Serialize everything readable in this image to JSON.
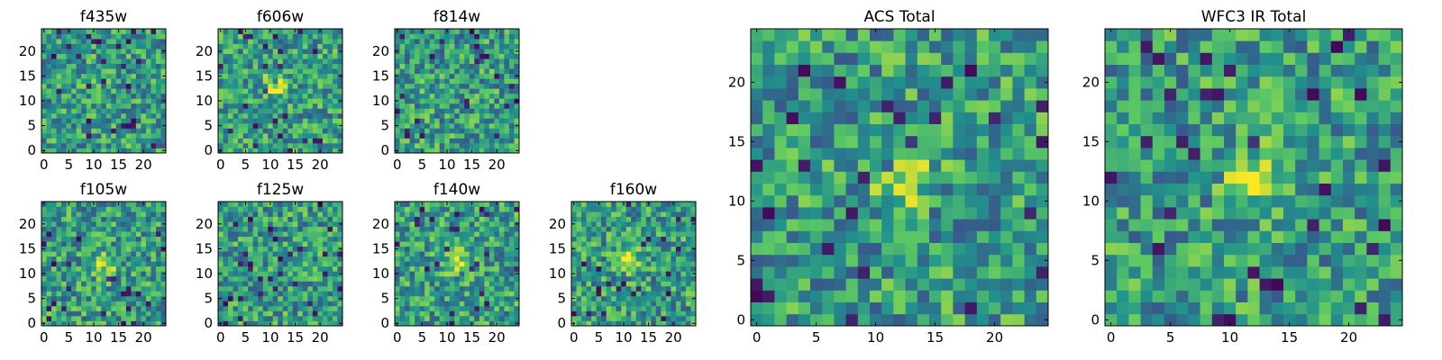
{
  "chart_data": [
    {
      "type": "heatmap",
      "title": "f435w",
      "xticks": [
        "0",
        "5",
        "10",
        "15",
        "20"
      ],
      "yticks": [
        "0",
        "5",
        "10",
        "15",
        "20"
      ],
      "xlim": [
        0,
        24
      ],
      "ylim": [
        0,
        24
      ],
      "grid": false,
      "colormap": "viridis",
      "values": []
    },
    {
      "type": "heatmap",
      "title": "f606w",
      "xticks": [
        "0",
        "5",
        "10",
        "15",
        "20"
      ],
      "yticks": [
        "0",
        "5",
        "10",
        "15",
        "20"
      ],
      "xlim": [
        0,
        24
      ],
      "ylim": [
        0,
        24
      ],
      "grid": false,
      "colormap": "viridis",
      "values": []
    },
    {
      "type": "heatmap",
      "title": "f814w",
      "xticks": [
        "0",
        "5",
        "10",
        "15",
        "20"
      ],
      "yticks": [
        "0",
        "5",
        "10",
        "15",
        "20"
      ],
      "xlim": [
        0,
        24
      ],
      "ylim": [
        0,
        24
      ],
      "grid": false,
      "colormap": "viridis",
      "values": []
    },
    {
      "type": "heatmap",
      "title": "f105w",
      "xticks": [
        "0",
        "5",
        "10",
        "15",
        "20"
      ],
      "yticks": [
        "0",
        "5",
        "10",
        "15",
        "20"
      ],
      "xlim": [
        0,
        24
      ],
      "ylim": [
        0,
        24
      ],
      "grid": false,
      "colormap": "viridis",
      "values": []
    },
    {
      "type": "heatmap",
      "title": "f125w",
      "xticks": [
        "0",
        "5",
        "10",
        "15",
        "20"
      ],
      "yticks": [
        "0",
        "5",
        "10",
        "15",
        "20"
      ],
      "xlim": [
        0,
        24
      ],
      "ylim": [
        0,
        24
      ],
      "grid": false,
      "colormap": "viridis",
      "values": []
    },
    {
      "type": "heatmap",
      "title": "f140w",
      "xticks": [
        "0",
        "5",
        "10",
        "15",
        "20"
      ],
      "yticks": [
        "0",
        "5",
        "10",
        "15",
        "20"
      ],
      "xlim": [
        0,
        24
      ],
      "ylim": [
        0,
        24
      ],
      "grid": false,
      "colormap": "viridis",
      "values": []
    },
    {
      "type": "heatmap",
      "title": "f160w",
      "xticks": [
        "0",
        "5",
        "10",
        "15",
        "20"
      ],
      "yticks": [
        "0",
        "5",
        "10",
        "15",
        "20"
      ],
      "xlim": [
        0,
        24
      ],
      "ylim": [
        0,
        24
      ],
      "grid": false,
      "colormap": "viridis",
      "values": []
    },
    {
      "type": "heatmap",
      "title": "ACS Total",
      "xticks": [
        "0",
        "5",
        "10",
        "15",
        "20"
      ],
      "yticks": [
        "0",
        "5",
        "10",
        "15",
        "20"
      ],
      "xlim": [
        0,
        24
      ],
      "ylim": [
        0,
        24
      ],
      "grid": false,
      "colormap": "viridis",
      "values": []
    },
    {
      "type": "heatmap",
      "title": "WFC3 IR Total",
      "xticks": [
        "0",
        "5",
        "10",
        "15",
        "20"
      ],
      "yticks": [
        "0",
        "5",
        "10",
        "15",
        "20"
      ],
      "xlim": [
        0,
        24
      ],
      "ylim": [
        0,
        24
      ],
      "grid": false,
      "colormap": "viridis",
      "values": []
    }
  ],
  "colors": {
    "viridis_stops": [
      "#440154",
      "#3b528b",
      "#21918c",
      "#5ec962",
      "#fde725"
    ]
  }
}
